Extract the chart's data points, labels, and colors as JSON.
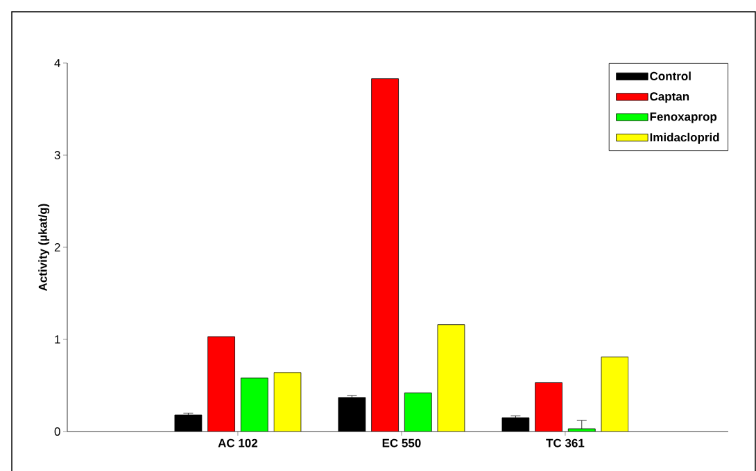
{
  "chart_data": {
    "type": "bar",
    "ylabel": "Activity (µkat/g)",
    "categories": [
      "AC 102",
      "EC 550",
      "TC 361"
    ],
    "series": [
      {
        "name": "Control",
        "color": "#000000",
        "values": [
          0.18,
          0.37,
          0.15
        ],
        "errors": [
          0.02,
          0.02,
          0.02
        ]
      },
      {
        "name": "Captan",
        "color": "#ff0000",
        "values": [
          1.03,
          3.83,
          0.53
        ],
        "errors": [
          null,
          null,
          null
        ]
      },
      {
        "name": "Fenoxaprop",
        "color": "#00ff00",
        "values": [
          0.58,
          0.42,
          0.03
        ],
        "errors": [
          null,
          null,
          0.09
        ]
      },
      {
        "name": "Imidacloprid",
        "color": "#ffff00",
        "values": [
          0.64,
          1.16,
          0.81
        ]
      }
    ],
    "ylim": [
      0,
      4
    ],
    "yticks": [
      0,
      1,
      2,
      3,
      4
    ],
    "legend": "top right"
  }
}
